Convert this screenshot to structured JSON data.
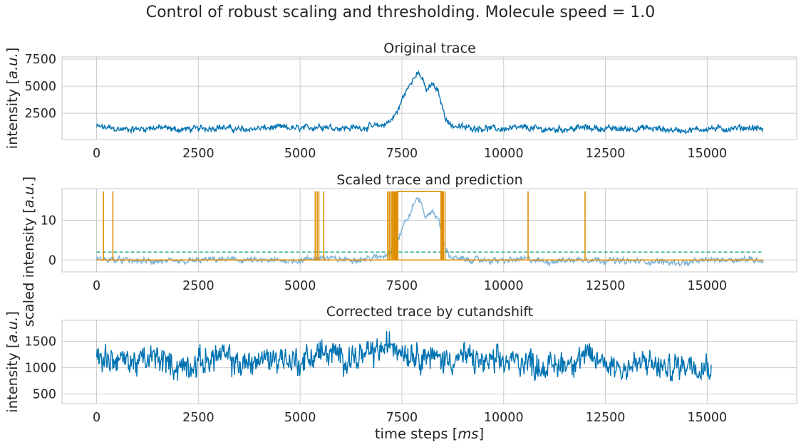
{
  "figure": {
    "suptitle": "Control of robust scaling and thresholding. Molecule speed = 1.0"
  },
  "chart_data": [
    {
      "type": "line",
      "title": "Original trace",
      "xlabel": "",
      "ylabel": "intensity [a.u.]",
      "xlim": [
        -850,
        17200
      ],
      "ylim": [
        80,
        7700
      ],
      "xticks": [
        0,
        2500,
        5000,
        7500,
        10000,
        12500,
        15000
      ],
      "xtick_labels": [
        "0",
        "2500",
        "5000",
        "7500",
        "10000",
        "12500",
        "15000"
      ],
      "yticks": [
        2500,
        5000,
        7500
      ],
      "ytick_labels": [
        "2500",
        "5000",
        "7500"
      ],
      "grid": true,
      "series": [
        {
          "color": "#0173b2",
          "x_range": [
            0,
            16380
          ],
          "points": [
            [
              0,
              1250
            ],
            [
              300,
              1150
            ],
            [
              600,
              1000
            ],
            [
              1000,
              1050
            ],
            [
              1500,
              1180
            ],
            [
              2000,
              1000
            ],
            [
              2500,
              1080
            ],
            [
              3000,
              1220
            ],
            [
              3500,
              1000
            ],
            [
              4000,
              1100
            ],
            [
              4500,
              1200
            ],
            [
              5000,
              1080
            ],
            [
              5500,
              1300
            ],
            [
              6000,
              1150
            ],
            [
              6500,
              1180
            ],
            [
              7000,
              1350
            ],
            [
              7200,
              1750
            ],
            [
              7400,
              2700
            ],
            [
              7550,
              4200
            ],
            [
              7700,
              5100
            ],
            [
              7850,
              6300
            ],
            [
              7950,
              6100
            ],
            [
              8100,
              4600
            ],
            [
              8250,
              5200
            ],
            [
              8400,
              4400
            ],
            [
              8550,
              2300
            ],
            [
              8700,
              1400
            ],
            [
              9000,
              1200
            ],
            [
              9500,
              1120
            ],
            [
              10000,
              1050
            ],
            [
              10500,
              1180
            ],
            [
              11000,
              1000
            ],
            [
              11500,
              1050
            ],
            [
              12000,
              1180
            ],
            [
              12500,
              1080
            ],
            [
              13000,
              1050
            ],
            [
              13500,
              1120
            ],
            [
              14000,
              1000
            ],
            [
              14500,
              900
            ],
            [
              15000,
              1100
            ],
            [
              15500,
              1050
            ],
            [
              16000,
              1180
            ],
            [
              16380,
              1050
            ]
          ],
          "noise_amplitude": 380
        }
      ]
    },
    {
      "type": "line",
      "title": "Scaled trace and prediction",
      "xlabel": "",
      "ylabel": "scaled intensity [a.u.]",
      "xlim": [
        -850,
        17200
      ],
      "ylim": [
        -3,
        18
      ],
      "xticks": [
        0,
        2500,
        5000,
        7500,
        10000,
        12500,
        15000
      ],
      "xtick_labels": [
        "0",
        "2500",
        "5000",
        "7500",
        "10000",
        "12500",
        "15000"
      ],
      "yticks": [
        0,
        10
      ],
      "ytick_labels": [
        "0",
        "10"
      ],
      "grid": true,
      "series": [
        {
          "color": "#7fb3d5",
          "x_range": [
            0,
            16380
          ],
          "points": [
            [
              0,
              0.3
            ],
            [
              1000,
              -0.3
            ],
            [
              2000,
              -0.5
            ],
            [
              3000,
              0.2
            ],
            [
              4000,
              -0.2
            ],
            [
              5000,
              -0.1
            ],
            [
              5500,
              0.6
            ],
            [
              6000,
              0.1
            ],
            [
              6500,
              0.2
            ],
            [
              7000,
              0.8
            ],
            [
              7200,
              1.8
            ],
            [
              7400,
              5.0
            ],
            [
              7550,
              9.0
            ],
            [
              7700,
              11.5
            ],
            [
              7850,
              15.5
            ],
            [
              7950,
              15.0
            ],
            [
              8100,
              10.5
            ],
            [
              8250,
              12.5
            ],
            [
              8400,
              10.0
            ],
            [
              8550,
              3.5
            ],
            [
              8700,
              0.7
            ],
            [
              9000,
              0.1
            ],
            [
              10000,
              -0.2
            ],
            [
              10500,
              0.3
            ],
            [
              11000,
              -0.4
            ],
            [
              12000,
              0.2
            ],
            [
              13000,
              -0.3
            ],
            [
              14000,
              -0.5
            ],
            [
              14500,
              -0.8
            ],
            [
              15000,
              0.0
            ],
            [
              16000,
              0.2
            ],
            [
              16380,
              -0.1
            ]
          ],
          "noise_amplitude": 1.0
        },
        {
          "color": "#029e73",
          "style": "dashed",
          "x": [
            0,
            16380
          ],
          "values": [
            2.0,
            2.0
          ]
        },
        {
          "color": "#de8f05",
          "style": "step",
          "baseline": 0,
          "high": 17.3,
          "spikes_at": [
            170,
            400,
            5370,
            5420,
            5460,
            5580,
            7150,
            7190,
            7230,
            7260,
            7290,
            7310,
            7330,
            7350,
            7370,
            7390,
            8480,
            8500,
            8520,
            8560,
            10600,
            12000
          ],
          "high_block": [
            7400,
            8460
          ]
        }
      ]
    },
    {
      "type": "line",
      "title": "Corrected trace by cutandshift",
      "xlabel": "time steps [ms]",
      "ylabel": "intensity [a.u.]",
      "xlim": [
        -850,
        17200
      ],
      "ylim": [
        320,
        1900
      ],
      "xticks": [
        0,
        2500,
        5000,
        7500,
        10000,
        12500,
        15000
      ],
      "xtick_labels": [
        "0",
        "2500",
        "5000",
        "7500",
        "10000",
        "12500",
        "15000"
      ],
      "yticks": [
        500,
        1000,
        1500
      ],
      "ytick_labels": [
        "500",
        "1000",
        "1500"
      ],
      "grid": true,
      "series": [
        {
          "color": "#0173b2",
          "x_range": [
            0,
            15100
          ],
          "points": [
            [
              0,
              1200
            ],
            [
              500,
              1150
            ],
            [
              1000,
              1100
            ],
            [
              1500,
              1200
            ],
            [
              2000,
              1000
            ],
            [
              2500,
              1080
            ],
            [
              3000,
              1250
            ],
            [
              3500,
              1050
            ],
            [
              4000,
              1150
            ],
            [
              4500,
              1200
            ],
            [
              5000,
              1100
            ],
            [
              5500,
              1300
            ],
            [
              6000,
              1200
            ],
            [
              6500,
              1200
            ],
            [
              7000,
              1350
            ],
            [
              7300,
              1450
            ],
            [
              7600,
              1300
            ],
            [
              8000,
              1250
            ],
            [
              8500,
              1150
            ],
            [
              9000,
              1200
            ],
            [
              9500,
              1100
            ],
            [
              10000,
              1100
            ],
            [
              10500,
              1150
            ],
            [
              11000,
              1000
            ],
            [
              11500,
              1100
            ],
            [
              12000,
              1200
            ],
            [
              12500,
              1100
            ],
            [
              13000,
              1000
            ],
            [
              13500,
              1100
            ],
            [
              14000,
              950
            ],
            [
              14500,
              1100
            ],
            [
              15100,
              1050
            ]
          ],
          "noise_amplitude": 330
        }
      ]
    }
  ]
}
